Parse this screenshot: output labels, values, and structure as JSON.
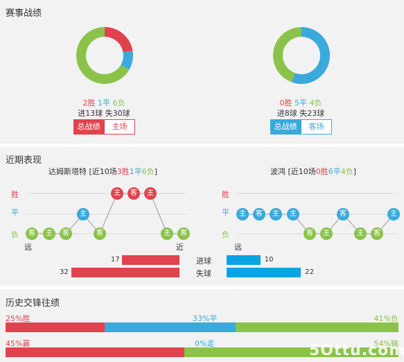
{
  "season": {
    "title": "赛事战绩",
    "left": {
      "win": "2胜",
      "draw": "1平",
      "loss": "6负",
      "goals": "进13球",
      "conceded": "失30球",
      "tab_total": "总战绩",
      "tab_side": "主场",
      "donut": [
        {
          "value": 2,
          "color": "#e0434e"
        },
        {
          "value": 1,
          "color": "#3aa9dc"
        },
        {
          "value": 6,
          "color": "#8bc34a"
        }
      ]
    },
    "right": {
      "win": "0胜",
      "draw": "5平",
      "loss": "4负",
      "goals": "进8球",
      "conceded": "失23球",
      "tab_total": "总战绩",
      "tab_side": "客场",
      "donut": [
        {
          "value": 0,
          "color": "#e0434e"
        },
        {
          "value": 5,
          "color": "#3aa9dc"
        },
        {
          "value": 4,
          "color": "#8bc34a"
        }
      ]
    }
  },
  "recent": {
    "title": "近期表现",
    "left": {
      "team": "达姆斯塔特",
      "rec_prefix": "[近10场",
      "rec_w": "3胜",
      "rec_d": "1平",
      "rec_l": "6负",
      "rec_suffix": "]",
      "results": [
        "L",
        "L",
        "L",
        "D",
        "L",
        "W",
        "W",
        "W",
        "L",
        "L"
      ],
      "venues": [
        "客",
        "主",
        "客",
        "主",
        "客",
        "主",
        "客",
        "主",
        "主",
        "客"
      ]
    },
    "right": {
      "team": "波鸿",
      "rec_prefix": "[近10场",
      "rec_w": "0胜",
      "rec_d": "6平",
      "rec_l": "4负",
      "rec_suffix": "]",
      "results": [
        "D",
        "D",
        "D",
        "D",
        "L",
        "L",
        "D",
        "L",
        "L",
        "D"
      ],
      "venues": [
        "主",
        "客",
        "主",
        "主",
        "客",
        "主",
        "客",
        "主",
        "客",
        "主"
      ]
    },
    "row_win": "胜",
    "row_draw": "平",
    "row_loss": "负",
    "far": "远",
    "near": "近",
    "goals_label": "进球",
    "conceded_label": "失球",
    "left_goals": 17,
    "left_conceded": 32,
    "right_goals": 10,
    "right_conceded": 22,
    "bar_max": 32
  },
  "history": {
    "title": "历史交锋往绩",
    "row1": {
      "left": "25%胜",
      "mid": "33%平",
      "right": "41%负",
      "a": 25,
      "b": 33,
      "c": 41
    },
    "row2": {
      "left": "45%赢",
      "mid": "0%走",
      "right": "54%输",
      "a": 45,
      "b": 0,
      "c": 54
    }
  },
  "watermark": "5Ottu.com",
  "colors": {
    "red": "#e0434e",
    "blue": "#3aa9dc",
    "green": "#8bc34a",
    "bar_blue": "#0aa4e6"
  }
}
